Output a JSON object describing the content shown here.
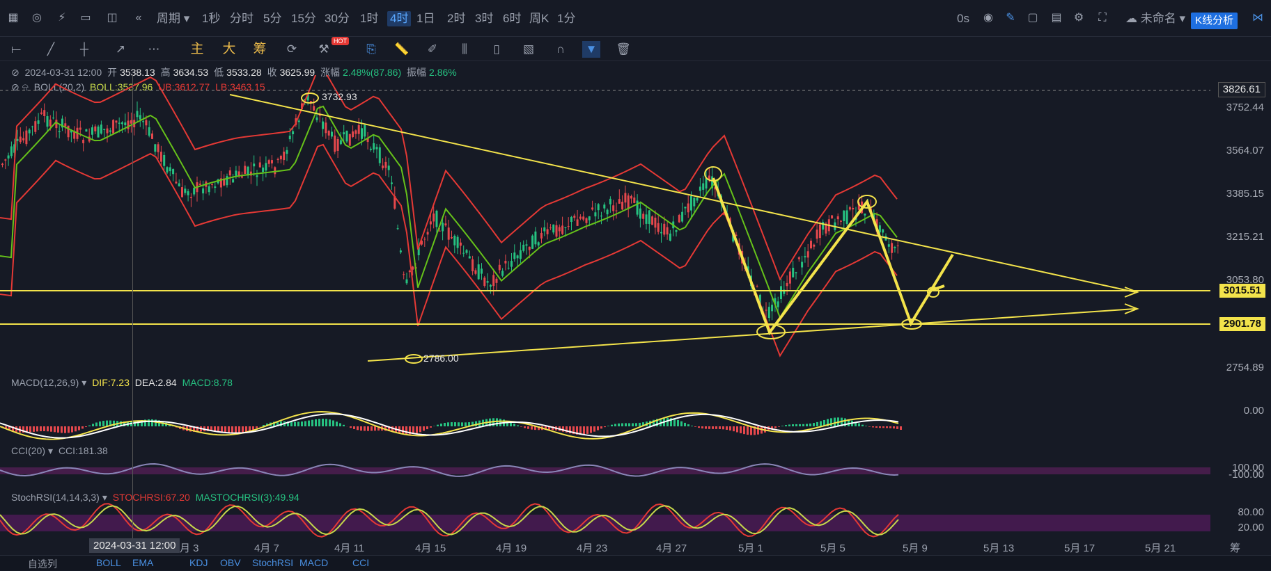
{
  "topbar": {
    "timeframes": [
      "1秒",
      "分时",
      "5分",
      "15分",
      "30分",
      "1时",
      "4时",
      "1日",
      "2时",
      "3时",
      "6时",
      "周K",
      "1分"
    ],
    "active_timeframe": "4时",
    "period_label": "周期",
    "countdown": "0s",
    "layout_name": "未命名",
    "analysis_button": "K线分析"
  },
  "drawing_toolbar": {
    "indicator_labels": [
      "主",
      "大",
      "筹"
    ],
    "hot_badge": "HOT"
  },
  "info": {
    "date": "2024-03-31 12:00",
    "open_label": "开",
    "open": "3538.13",
    "high_label": "高",
    "high": "3634.53",
    "low_label": "低",
    "low": "3533.28",
    "close_label": "收",
    "close": "3625.99",
    "change_label": "涨幅",
    "change": "2.48%(87.86)",
    "amp_label": "振幅",
    "amp": "2.86%",
    "boll_name": "BOLL(20,2)",
    "boll_mid": "BOLL:3537.96",
    "boll_ub": "UB:3612.77",
    "boll_lb": "LB:3463.15"
  },
  "price_axis": [
    "3826.61",
    "3752.44",
    "3564.07",
    "3385.15",
    "3215.21",
    "3053.80",
    "2754.89"
  ],
  "levels": {
    "upper": "3015.51",
    "lower": "2901.78",
    "current": "3826.61"
  },
  "annotations": {
    "high": "3732.93",
    "low": "2786.00"
  },
  "macd": {
    "name": "MACD(12,26,9)",
    "dif": "DIF:7.23",
    "dea": "DEA:2.84",
    "macd": "MACD:8.78",
    "zero": "0.00"
  },
  "cci": {
    "name": "CCI(20)",
    "value": "CCI:181.38",
    "lv1": "100.00",
    "lv2": "-100.00"
  },
  "stochrsi": {
    "name": "StochRSI(14,14,3,3)",
    "k": "STOCHRSI:67.20",
    "d": "MASTOCHRSI(3):49.94",
    "lv1": "80.00",
    "lv2": "20.00"
  },
  "x_axis": {
    "cursor_label": "2024-03-31 12:00",
    "labels": [
      "月 3",
      "4月 7",
      "4月 11",
      "4月 15",
      "4月 19",
      "4月 23",
      "4月 27",
      "5月 1",
      "5月 5",
      "5月 9",
      "5月 13",
      "5月 17",
      "5月 21"
    ]
  },
  "bottom": {
    "items": [
      "自选列",
      "BOLL",
      "EMA",
      "KDJ",
      "OBV",
      "StochRSI",
      "MACD",
      "CCI"
    ],
    "right": "筹"
  }
}
